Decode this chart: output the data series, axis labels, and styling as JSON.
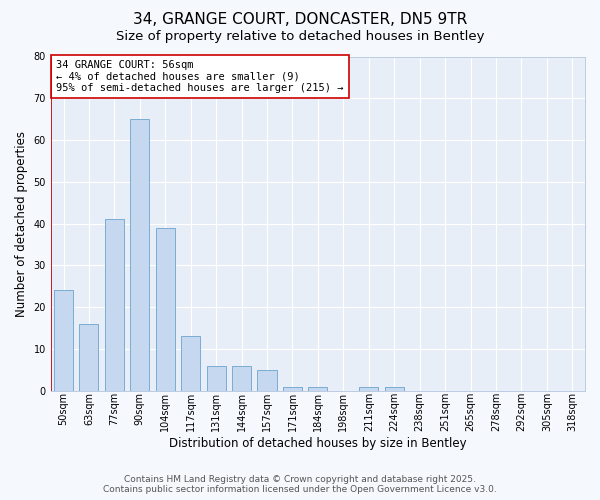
{
  "title1": "34, GRANGE COURT, DONCASTER, DN5 9TR",
  "title2": "Size of property relative to detached houses in Bentley",
  "xlabel": "Distribution of detached houses by size in Bentley",
  "ylabel": "Number of detached properties",
  "categories": [
    "50sqm",
    "63sqm",
    "77sqm",
    "90sqm",
    "104sqm",
    "117sqm",
    "131sqm",
    "144sqm",
    "157sqm",
    "171sqm",
    "184sqm",
    "198sqm",
    "211sqm",
    "224sqm",
    "238sqm",
    "251sqm",
    "265sqm",
    "278sqm",
    "292sqm",
    "305sqm",
    "318sqm"
  ],
  "values": [
    24,
    16,
    41,
    65,
    39,
    13,
    6,
    6,
    5,
    1,
    1,
    0,
    1,
    1,
    0,
    0,
    0,
    0,
    0,
    0,
    0
  ],
  "bar_color": "#c5d8ef",
  "bar_edge_color": "#7aadd4",
  "red_line_color": "#cc0000",
  "annotation_text": "34 GRANGE COURT: 56sqm\n← 4% of detached houses are smaller (9)\n95% of semi-detached houses are larger (215) →",
  "annotation_box_color": "#ffffff",
  "annotation_box_edge_color": "#cc0000",
  "ylim": [
    0,
    80
  ],
  "yticks": [
    0,
    10,
    20,
    30,
    40,
    50,
    60,
    70,
    80
  ],
  "footer1": "Contains HM Land Registry data © Crown copyright and database right 2025.",
  "footer2": "Contains public sector information licensed under the Open Government Licence v3.0.",
  "plot_bg_color": "#e8eef7",
  "fig_bg_color": "#f5f8fd",
  "grid_color": "#ffffff",
  "title1_fontsize": 11,
  "title2_fontsize": 9.5,
  "xlabel_fontsize": 8.5,
  "ylabel_fontsize": 8.5,
  "tick_fontsize": 7,
  "annotation_fontsize": 7.5,
  "footer_fontsize": 6.5
}
